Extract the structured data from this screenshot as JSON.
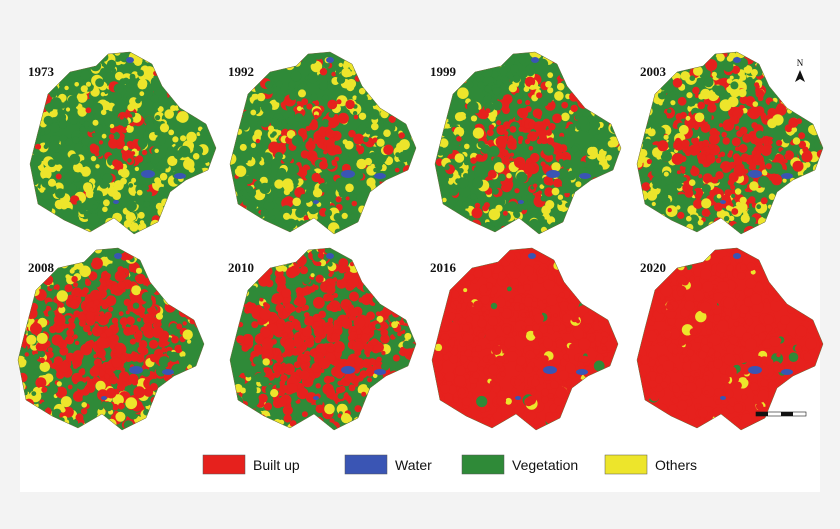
{
  "panels": [
    {
      "year": "1973"
    },
    {
      "year": "1992"
    },
    {
      "year": "1999"
    },
    {
      "year": "2003"
    },
    {
      "year": "2008"
    },
    {
      "year": "2010"
    },
    {
      "year": "2016"
    },
    {
      "year": "2020"
    }
  ],
  "legend": [
    {
      "label": "Built up",
      "color": "#e6211d"
    },
    {
      "label": "Water",
      "color": "#3a55b4"
    },
    {
      "label": "Vegetation",
      "color": "#2f8a38"
    },
    {
      "label": "Others",
      "color": "#ede52b"
    }
  ],
  "north_label": "N"
}
